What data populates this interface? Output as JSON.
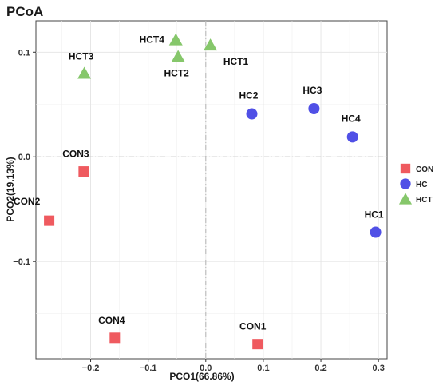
{
  "chart_data": {
    "type": "scatter",
    "title": "PCoA",
    "xlabel": "PCO1(66.86%)",
    "ylabel": "PCO2(19.13%)",
    "xlim": [
      -0.295,
      0.315
    ],
    "ylim": [
      -0.193,
      0.13
    ],
    "x_ticks": [
      -0.2,
      -0.1,
      0.0,
      0.1,
      0.2,
      0.3
    ],
    "x_tick_labels": [
      "−0.2",
      "−0.1",
      "0.0",
      "0.1",
      "0.2",
      "0.3"
    ],
    "y_ticks": [
      -0.1,
      0.0,
      0.1
    ],
    "y_tick_labels": [
      "−0.1",
      "0.0",
      "0.1"
    ],
    "grid": true,
    "reference_lines": {
      "x": 0,
      "y": 0
    },
    "legend_position": "right",
    "series": [
      {
        "name": "CON",
        "marker": "square",
        "color": "#ef5a5f",
        "points": [
          {
            "label": "CON1",
            "x": 0.09,
            "y": -0.179
          },
          {
            "label": "CON2",
            "x": -0.272,
            "y": -0.061
          },
          {
            "label": "CON3",
            "x": -0.212,
            "y": -0.014
          },
          {
            "label": "CON4",
            "x": -0.158,
            "y": -0.173
          }
        ]
      },
      {
        "name": "HC",
        "marker": "circle",
        "color": "#5050e6",
        "points": [
          {
            "label": "HC1",
            "x": 0.295,
            "y": -0.072
          },
          {
            "label": "HC2",
            "x": 0.08,
            "y": 0.041
          },
          {
            "label": "HC3",
            "x": 0.188,
            "y": 0.046
          },
          {
            "label": "HC4",
            "x": 0.255,
            "y": 0.019
          }
        ]
      },
      {
        "name": "HCT",
        "marker": "triangle",
        "color": "#86c76b",
        "points": [
          {
            "label": "HCT1",
            "x": 0.008,
            "y": 0.107
          },
          {
            "label": "HCT2",
            "x": -0.048,
            "y": 0.096
          },
          {
            "label": "HCT3",
            "x": -0.211,
            "y": 0.08
          },
          {
            "label": "HCT4",
            "x": -0.052,
            "y": 0.112
          }
        ]
      }
    ]
  }
}
